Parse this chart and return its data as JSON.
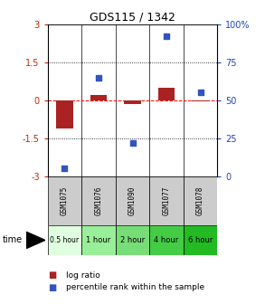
{
  "title": "GDS115 / 1342",
  "samples": [
    "GSM1075",
    "GSM1076",
    "GSM1090",
    "GSM1077",
    "GSM1078"
  ],
  "time_labels": [
    "0.5 hour",
    "1 hour",
    "2 hour",
    "4 hour",
    "6 hour"
  ],
  "log_ratios": [
    -1.1,
    0.2,
    -0.15,
    0.5,
    -0.05
  ],
  "percentile_ranks": [
    5,
    65,
    22,
    92,
    55
  ],
  "bar_color": "#aa2222",
  "dot_color": "#3355bb",
  "ylim_left": [
    -3,
    3
  ],
  "ylim_right": [
    0,
    100
  ],
  "yticks_left": [
    -3,
    -1.5,
    0,
    1.5,
    3
  ],
  "yticks_right": [
    0,
    25,
    50,
    75,
    100
  ],
  "ytick_labels_left": [
    "-3",
    "-1.5",
    "0",
    "1.5",
    "3"
  ],
  "ytick_labels_right": [
    "0",
    "25",
    "50",
    "75",
    "100%"
  ],
  "bg_color": "#ffffff",
  "plot_bg": "#ffffff",
  "header_bg": "#cccccc",
  "time_colors": [
    "#e0ffe0",
    "#99ee99",
    "#77dd77",
    "#44cc44",
    "#22bb22"
  ]
}
